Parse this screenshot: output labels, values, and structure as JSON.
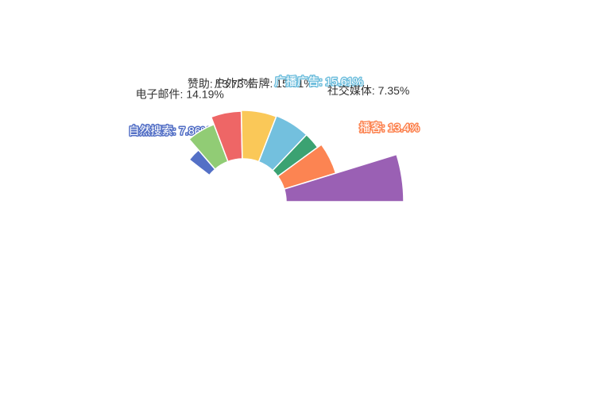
{
  "chart_data": {
    "type": "pie",
    "variant": "partial-donut",
    "rotation": "clockwise from upper-left to the right horizontal",
    "slices": [
      {
        "name": "自然搜索",
        "label": "自然搜索: 7.86%",
        "value": 7.86,
        "color": "#5470c6",
        "label_style": "light"
      },
      {
        "name": "电子邮件",
        "label": "电子邮件: 14.19%",
        "value": 14.19,
        "color": "#91cc75",
        "label_style": "dark"
      },
      {
        "name": "赞助",
        "label": "赞助: 13.73%",
        "value": 13.73,
        "color": "#ee6666",
        "label_style": "dark"
      },
      {
        "name": "户外广告牌",
        "label": "户外广告牌: 15.81%",
        "value": 15.81,
        "color": "#fac858",
        "label_style": "dark"
      },
      {
        "name": "广播广告",
        "label": "广播广告: 15.61%",
        "value": 15.61,
        "color": "#73c0de",
        "label_style": "light"
      },
      {
        "name": "社交媒体",
        "label": "社交媒体: 7.35%",
        "value": 7.35,
        "color": "#3ba272",
        "label_style": "dark"
      },
      {
        "name": "播客",
        "label": "播客: 13.4%",
        "value": 13.4,
        "color": "#fc8452",
        "label_style": "light"
      },
      {
        "name": "",
        "label": "",
        "value": 12.05,
        "color": "#9a60b4",
        "label_style": "none"
      }
    ]
  }
}
